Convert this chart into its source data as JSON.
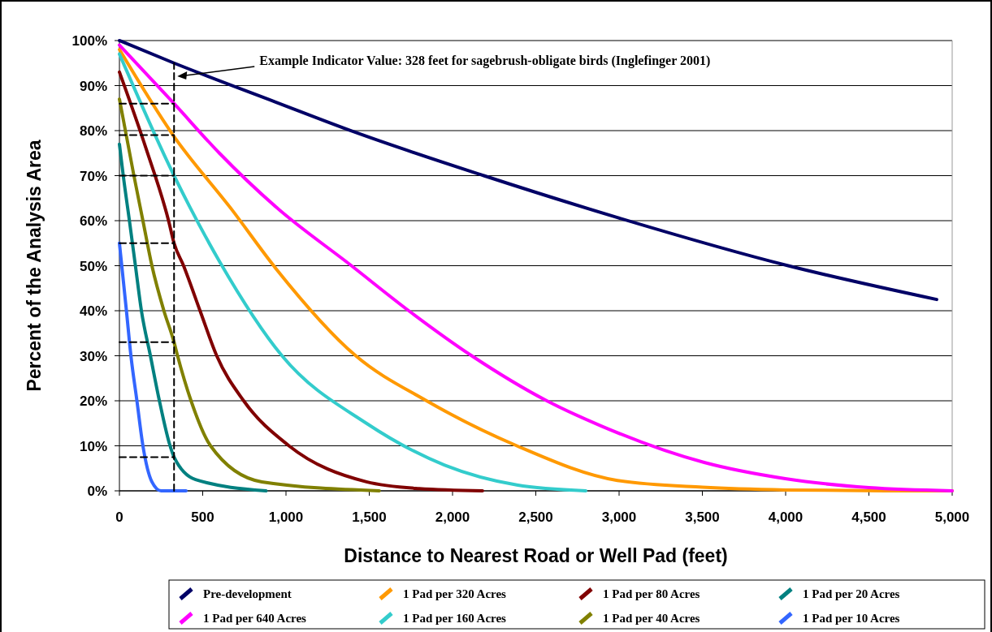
{
  "chart_data": {
    "type": "line",
    "xlabel": "Distance to Nearest Road or Well Pad (feet)",
    "ylabel": "Percent of the Analysis Area",
    "xlim": [
      0,
      5000
    ],
    "xticks": [
      {
        "value": 0,
        "label": "0"
      },
      {
        "value": 500,
        "label": "500"
      },
      {
        "value": 1000,
        "label": "1,000"
      },
      {
        "value": 1500,
        "label": "1,500"
      },
      {
        "value": 2000,
        "label": "2,000"
      },
      {
        "value": 2500,
        "label": "2,500"
      },
      {
        "value": 3000,
        "label": "3,000"
      },
      {
        "value": 3500,
        "label": "3,500"
      },
      {
        "value": 4000,
        "label": "4,000"
      },
      {
        "value": 4500,
        "label": "4,500"
      },
      {
        "value": 5000,
        "label": "5,000"
      }
    ],
    "ylim": [
      0,
      100
    ],
    "yticks": [
      {
        "value": 0,
        "label": "0%"
      },
      {
        "value": 10,
        "label": "10%"
      },
      {
        "value": 20,
        "label": "20%"
      },
      {
        "value": 30,
        "label": "30%"
      },
      {
        "value": 40,
        "label": "40%"
      },
      {
        "value": 50,
        "label": "50%"
      },
      {
        "value": 60,
        "label": "60%"
      },
      {
        "value": 70,
        "label": "70%"
      },
      {
        "value": 80,
        "label": "80%"
      },
      {
        "value": 90,
        "label": "90%"
      },
      {
        "value": 100,
        "label": "100%"
      }
    ],
    "grid": "y",
    "legend": "bottom",
    "marker": "none",
    "line_style": "solid",
    "annotations": [
      "Example Indicator Value: 328 feet for sagebrush-obligate birds (Inglefinger 2001)"
    ],
    "series": [
      {
        "name": "Pre-development",
        "color": "#000066",
        "x": [
          0,
          328,
          941,
          1411,
          2188,
          2990,
          4015,
          4907
        ],
        "values": [
          100,
          95,
          86.3,
          79.7,
          70,
          60.7,
          50,
          42.5
        ]
      },
      {
        "name": "1 Pad per 320 Acres",
        "color": "#ff9900",
        "x": [
          0,
          322,
          674,
          941,
          1419,
          1844,
          2386,
          2990,
          3500,
          4000,
          4600,
          5000
        ],
        "values": [
          98,
          79,
          62.5,
          49.3,
          30,
          20,
          10,
          2.3,
          0.8,
          0.2,
          0,
          0
        ]
      },
      {
        "name": "1 Pad per 80 Acres",
        "color": "#800000",
        "x": [
          0,
          160,
          295,
          328,
          385,
          484,
          584,
          746,
          1018,
          1483,
          1800,
          2180
        ],
        "values": [
          93,
          76,
          60,
          55,
          50,
          40,
          30,
          20,
          10,
          2,
          0.5,
          0
        ]
      },
      {
        "name": "1 Pad per 20 Acres",
        "color": "#008080",
        "x": [
          0,
          23,
          60,
          96,
          132,
          186,
          240,
          304,
          328,
          457,
          880
        ],
        "values": [
          77,
          70,
          60,
          50,
          40,
          30,
          20,
          10,
          7.5,
          2.5,
          0
        ]
      },
      {
        "name": "1 Pad per 640 Acres",
        "color": "#ff00ff",
        "x": [
          0,
          328,
          600,
          941,
          1393,
          1737,
          2115,
          2566,
          2893,
          3511,
          3998,
          4500,
          5000
        ],
        "values": [
          99,
          86,
          75,
          63,
          50,
          40,
          30,
          20,
          14.4,
          6.3,
          2.7,
          0.7,
          0
        ]
      },
      {
        "name": "1 Pad per 160 Acres",
        "color": "#33cccc",
        "x": [
          0,
          328,
          600,
          976,
          1483,
          1953,
          2386,
          2800
        ],
        "values": [
          97,
          70,
          51,
          30,
          15,
          5.7,
          1.3,
          0
        ]
      },
      {
        "name": "1 Pad per 40 Acres",
        "color": "#808000",
        "x": [
          0,
          87,
          141,
          195,
          267,
          328,
          349,
          430,
          547,
          855,
          1560
        ],
        "values": [
          87,
          70,
          60,
          50,
          40,
          33,
          30,
          20,
          10,
          2,
          0
        ]
      },
      {
        "name": "1 Pad per 10 Acres",
        "color": "#3366ff",
        "x": [
          0,
          14,
          42,
          69,
          105,
          141,
          195,
          250,
          400
        ],
        "values": [
          55,
          50,
          40,
          30,
          20,
          10,
          2,
          0,
          0
        ]
      },
      {
        "color": "#000000",
        "line_style": "dashed",
        "x": [
          328,
          328
        ],
        "values": [
          0,
          95
        ]
      },
      {
        "color": "#000000",
        "line_style": "dashed",
        "x": [
          0,
          328
        ],
        "values": [
          86,
          86
        ]
      },
      {
        "color": "#000000",
        "line_style": "dashed",
        "x": [
          0,
          328
        ],
        "values": [
          79,
          79
        ]
      },
      {
        "color": "#000000",
        "line_style": "dashed",
        "x": [
          0,
          328
        ],
        "values": [
          70,
          70
        ]
      },
      {
        "color": "#000000",
        "line_style": "dashed",
        "x": [
          0,
          328
        ],
        "values": [
          55,
          55
        ]
      },
      {
        "color": "#000000",
        "line_style": "dashed",
        "x": [
          0,
          328
        ],
        "values": [
          33,
          33
        ]
      },
      {
        "color": "#000000",
        "line_style": "dashed",
        "x": [
          0,
          328
        ],
        "values": [
          7.5,
          7.5
        ]
      }
    ]
  }
}
